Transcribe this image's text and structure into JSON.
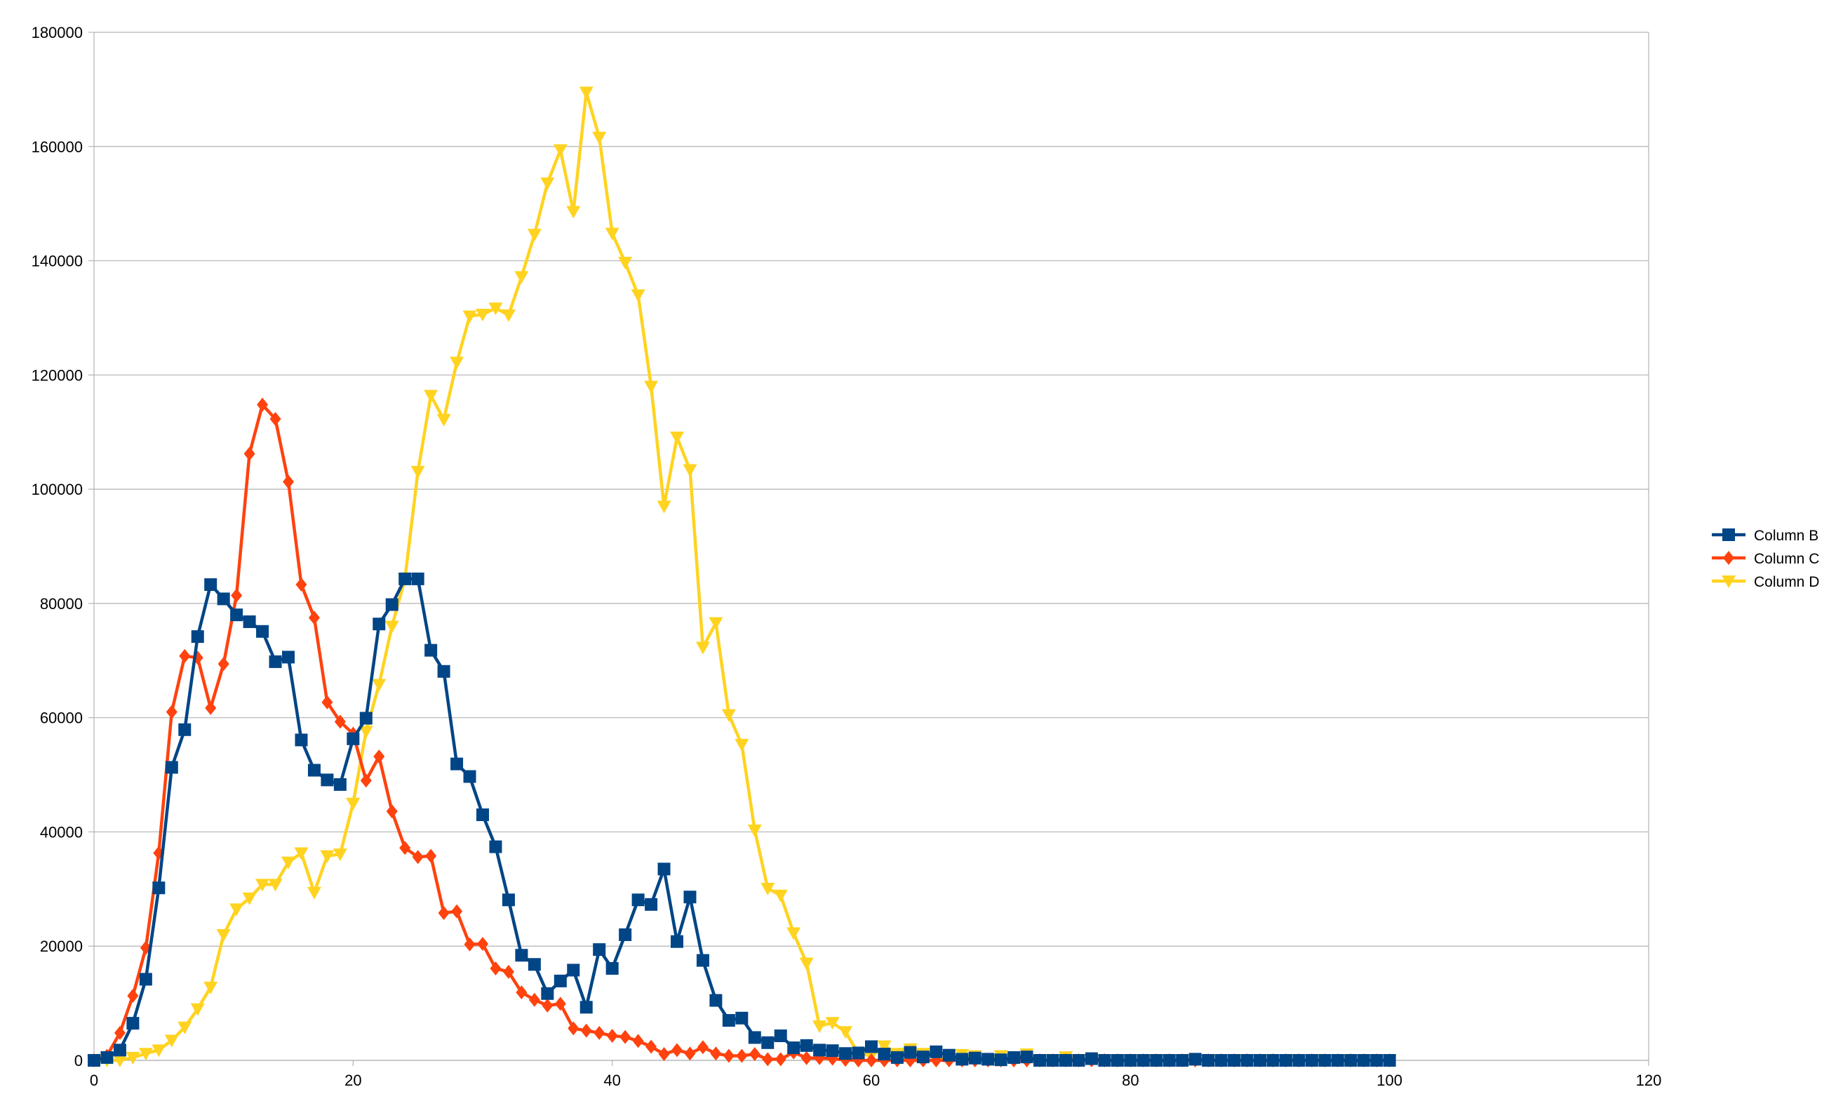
{
  "chart_data": {
    "type": "line",
    "title": "",
    "xlabel": "",
    "ylabel": "",
    "xlim": [
      0,
      120
    ],
    "ylim": [
      0,
      180000
    ],
    "x_ticks": [
      0,
      20,
      40,
      60,
      80,
      100,
      120
    ],
    "y_ticks": [
      0,
      20000,
      40000,
      60000,
      80000,
      100000,
      120000,
      140000,
      160000,
      180000
    ],
    "grid": "horizontal",
    "legend_position": "right",
    "x": [
      0,
      1,
      2,
      3,
      4,
      5,
      6,
      7,
      8,
      9,
      10,
      11,
      12,
      13,
      14,
      15,
      16,
      17,
      18,
      19,
      20,
      21,
      22,
      23,
      24,
      25,
      26,
      27,
      28,
      29,
      30,
      31,
      32,
      33,
      34,
      35,
      36,
      37,
      38,
      39,
      40,
      41,
      42,
      43,
      44,
      45,
      46,
      47,
      48,
      49,
      50,
      51,
      52,
      53,
      54,
      55,
      56,
      57,
      58,
      59,
      60,
      61,
      62,
      63,
      64,
      65,
      66,
      67,
      68,
      69,
      70,
      71,
      72,
      73,
      74,
      75,
      76,
      77,
      78,
      79,
      80,
      81,
      82,
      83,
      84,
      85,
      86,
      87,
      88,
      89,
      90,
      91,
      92,
      93,
      94,
      95,
      96,
      97,
      98,
      99,
      100
    ],
    "series": [
      {
        "name": "Column B",
        "color": "#004586",
        "marker": "square",
        "values": [
          0,
          500,
          1800,
          6500,
          14200,
          30200,
          51300,
          57900,
          74200,
          83300,
          80800,
          78000,
          76800,
          75100,
          69800,
          70600,
          56100,
          50800,
          49100,
          48300,
          56300,
          59900,
          76400,
          79800,
          84300,
          84300,
          71800,
          68100,
          51900,
          49700,
          43000,
          37400,
          28100,
          18400,
          16800,
          11700,
          13900,
          15800,
          9300,
          19400,
          16100,
          22000,
          28100,
          27300,
          33500,
          20800,
          28600,
          17500,
          10500,
          7000,
          7400,
          4000,
          3100,
          4300,
          2200,
          2600,
          1800,
          1700,
          1200,
          1300,
          2400,
          1100,
          500,
          1400,
          600,
          1500,
          900,
          200,
          400,
          200,
          100,
          500,
          600,
          0,
          0,
          0,
          0,
          300,
          0,
          0,
          0,
          0,
          0,
          0,
          0,
          200,
          0,
          0,
          0,
          0,
          0,
          0,
          0,
          0,
          0,
          0,
          0,
          0,
          0,
          0,
          0
        ]
      },
      {
        "name": "Column C",
        "color": "#ff420e",
        "marker": "diamond",
        "values": [
          0,
          800,
          4800,
          11300,
          19700,
          36300,
          61000,
          70800,
          70500,
          61700,
          69400,
          81400,
          106200,
          114800,
          112300,
          101300,
          83300,
          77500,
          62700,
          59300,
          57200,
          49000,
          53200,
          43600,
          37200,
          35600,
          35800,
          25800,
          26100,
          20300,
          20400,
          16100,
          15500,
          11900,
          10600,
          9600,
          9900,
          5600,
          5200,
          4800,
          4300,
          4100,
          3400,
          2400,
          1100,
          1800,
          1200,
          2300,
          1200,
          800,
          800,
          1100,
          200,
          200,
          1400,
          400,
          400,
          300,
          100,
          0,
          0,
          0,
          0,
          0,
          0,
          0,
          0,
          0,
          0,
          0,
          0,
          0,
          0,
          0,
          0,
          0,
          0,
          0,
          0,
          0,
          0,
          0,
          0,
          0,
          0,
          0,
          0,
          0,
          0,
          0,
          0,
          0,
          0,
          0,
          0,
          0,
          0,
          0,
          0,
          0,
          0
        ]
      },
      {
        "name": "Column D",
        "color": "#ffd320",
        "marker": "triangle-down",
        "values": [
          0,
          0,
          0,
          500,
          1200,
          1800,
          3500,
          5800,
          9000,
          12800,
          22000,
          26500,
          28400,
          30800,
          30800,
          34700,
          36300,
          29400,
          35800,
          36100,
          45000,
          57600,
          65800,
          76000,
          84300,
          103100,
          116400,
          112200,
          122200,
          130300,
          130600,
          131700,
          130500,
          137200,
          144600,
          153600,
          159400,
          148600,
          169500,
          161600,
          144800,
          139700,
          134000,
          118000,
          97000,
          109100,
          103400,
          72300,
          76600,
          60500,
          55300,
          40300,
          30100,
          28900,
          22300,
          17000,
          6000,
          6600,
          5000,
          1200,
          800,
          2500,
          1200,
          2000,
          1200,
          500,
          100,
          1000,
          800,
          0,
          800,
          0,
          1100,
          0,
          0,
          600,
          0,
          0,
          0,
          0,
          0,
          0,
          0,
          0,
          0,
          0,
          0,
          0,
          0,
          0,
          0,
          0,
          0,
          0,
          0,
          0,
          0,
          0,
          0,
          0,
          0
        ]
      }
    ]
  }
}
